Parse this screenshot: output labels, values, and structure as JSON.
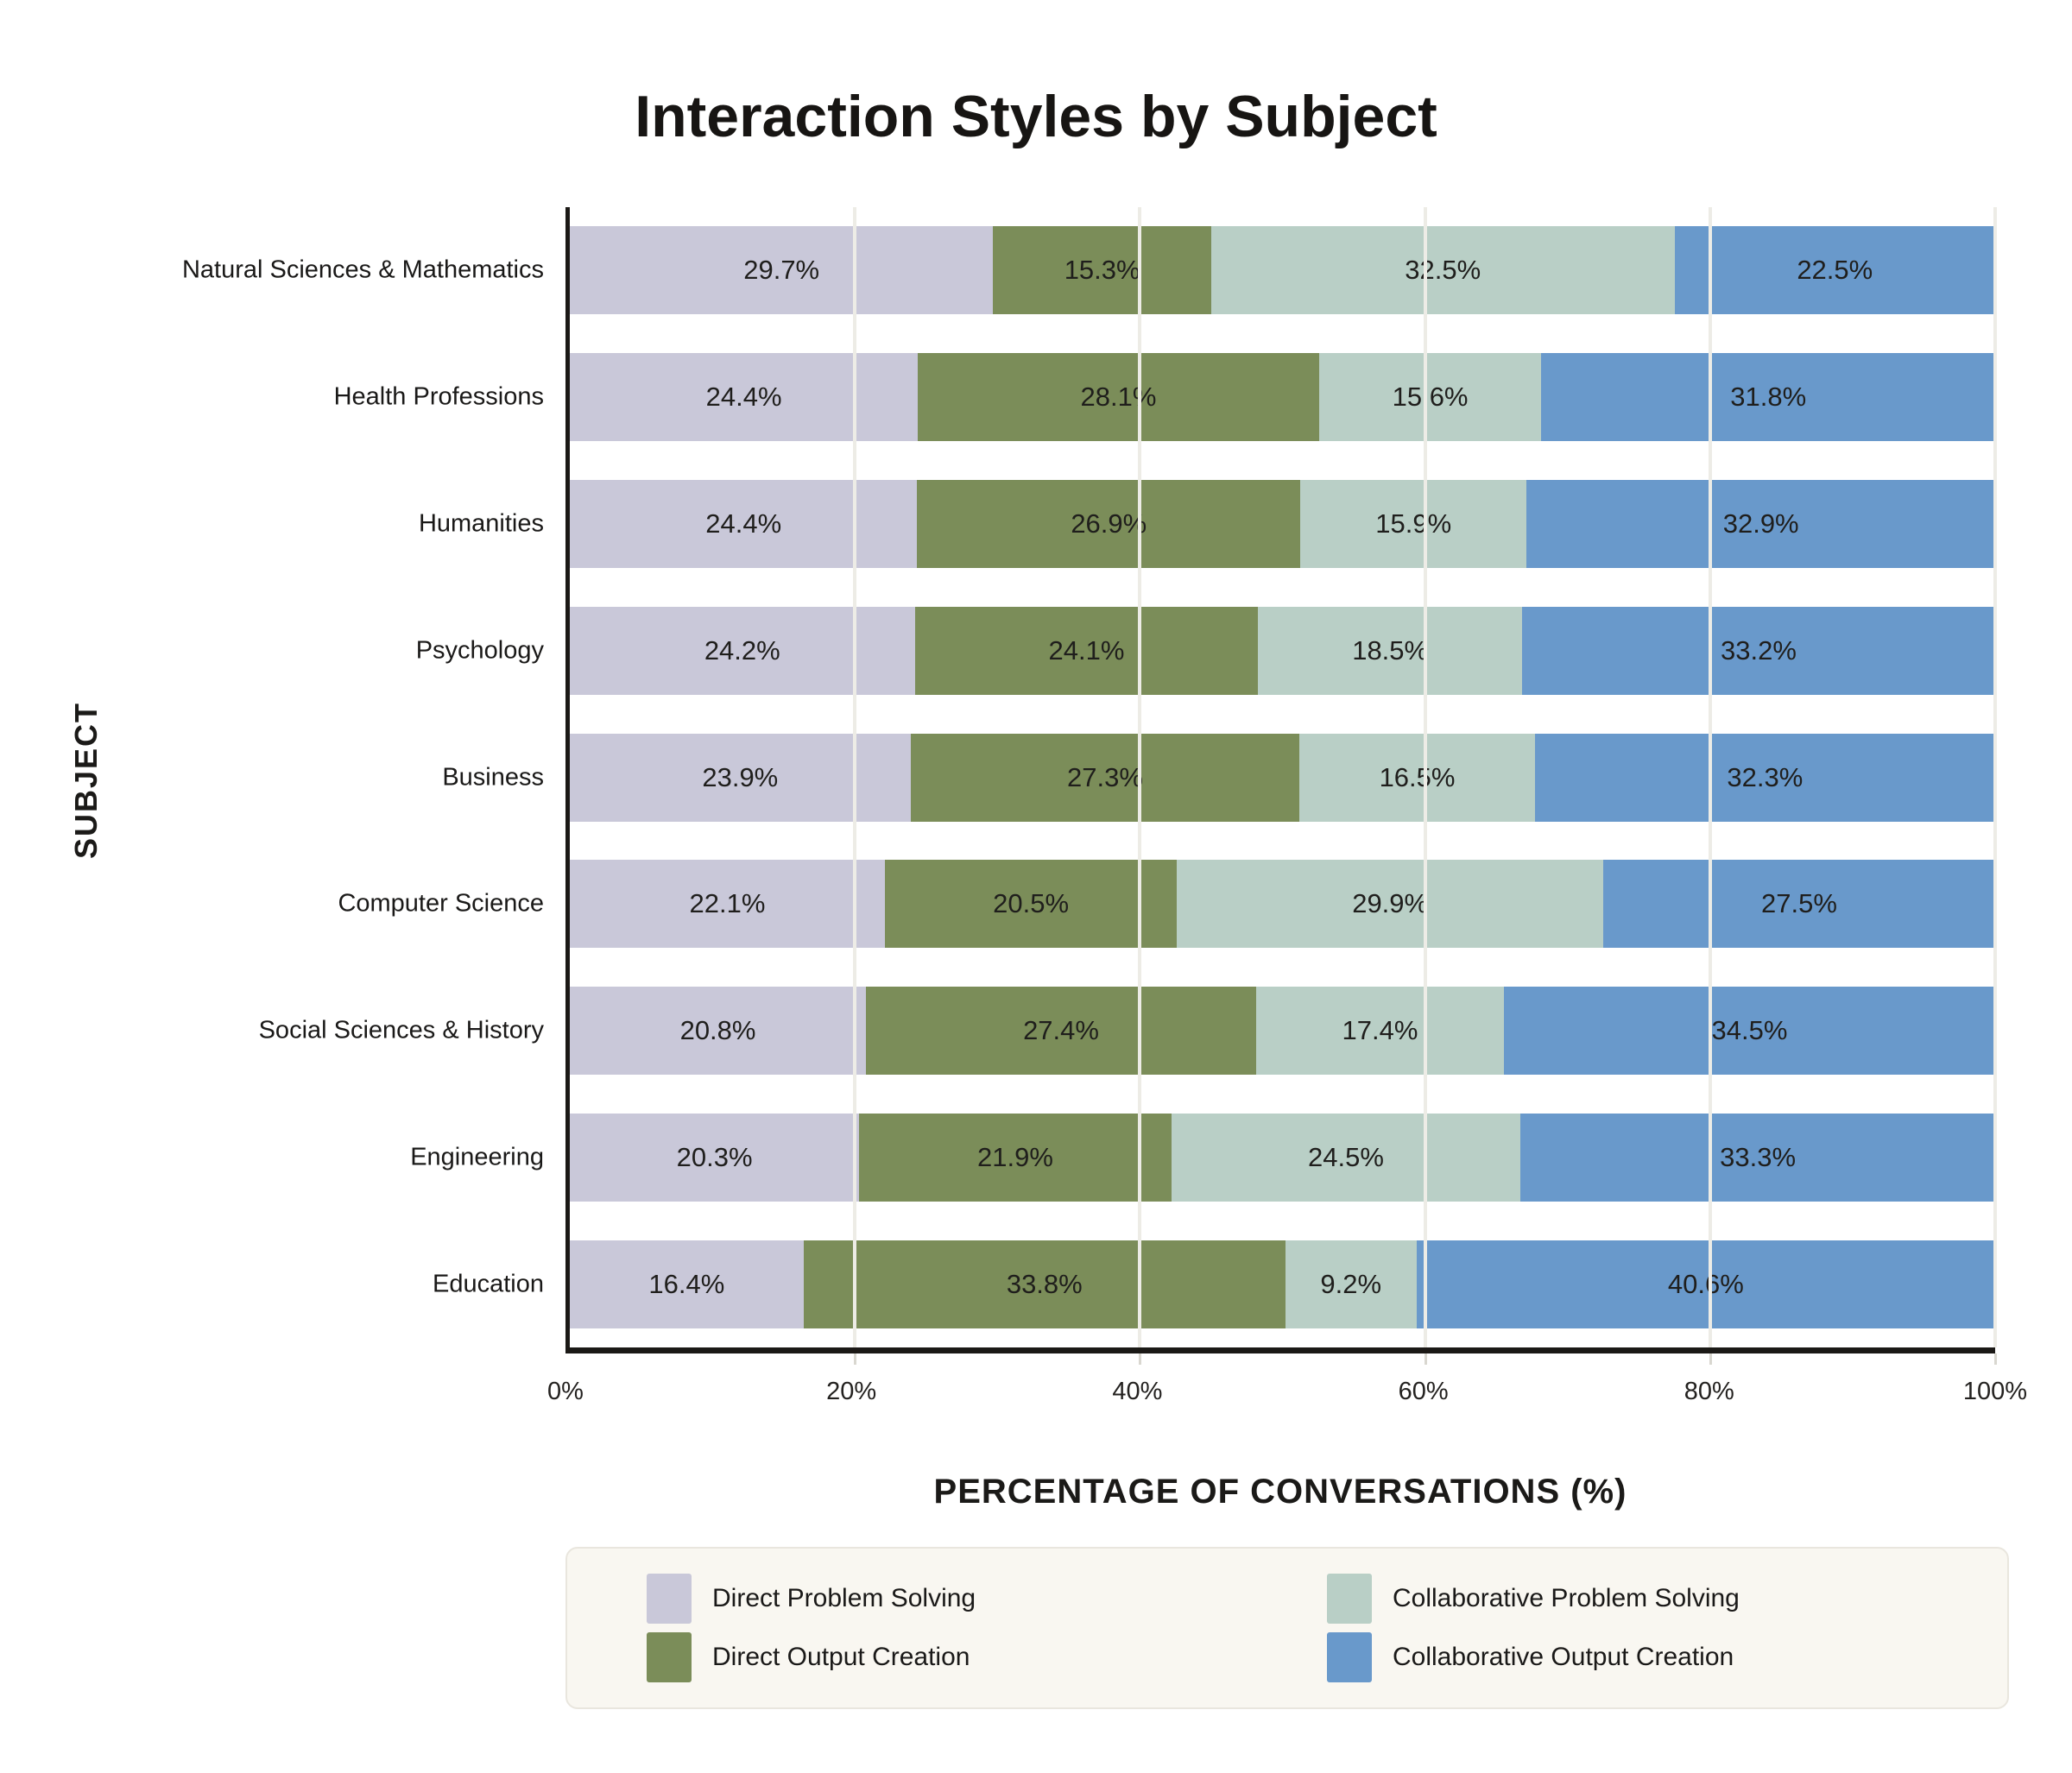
{
  "title": "Interaction Styles by Subject",
  "chart_data": {
    "type": "bar",
    "variant": "horizontal-stacked",
    "title": "Interaction Styles by Subject",
    "xlabel": "PERCENTAGE OF CONVERSATIONS (%)",
    "ylabel": "SUBJECT",
    "xlim": [
      0,
      100
    ],
    "x_ticks": [
      {
        "value": 0,
        "label": "0%"
      },
      {
        "value": 20,
        "label": "20%"
      },
      {
        "value": 40,
        "label": "40%"
      },
      {
        "value": 60,
        "label": "60%"
      },
      {
        "value": 80,
        "label": "80%"
      },
      {
        "value": 100,
        "label": "100%"
      }
    ],
    "grid": "vertical-gridlines-on",
    "legend_position": "bottom",
    "categories": [
      "Natural Sciences & Mathematics",
      "Health Professions",
      "Humanities",
      "Psychology",
      "Business",
      "Computer Science",
      "Social Sciences & History",
      "Engineering",
      "Education"
    ],
    "series": [
      {
        "name": "Direct Problem Solving",
        "color": "#c9c8d9",
        "values": [
          29.7,
          24.4,
          24.4,
          24.2,
          23.9,
          22.1,
          20.8,
          20.3,
          16.4
        ]
      },
      {
        "name": "Direct Output Creation",
        "color": "#7b8d59",
        "values": [
          15.3,
          28.1,
          26.9,
          24.1,
          27.3,
          20.5,
          27.4,
          21.9,
          33.8
        ]
      },
      {
        "name": "Collaborative Problem Solving",
        "color": "#b9cfc6",
        "values": [
          32.5,
          15.6,
          15.9,
          18.5,
          16.5,
          29.9,
          17.4,
          24.5,
          9.2
        ]
      },
      {
        "name": "Collaborative Output Creation",
        "color": "#6999cb",
        "values": [
          22.5,
          31.8,
          32.9,
          33.2,
          32.3,
          27.5,
          34.5,
          33.3,
          40.6
        ]
      }
    ],
    "value_label_suffix": "%"
  },
  "colors": {
    "page_background": "#ffffff",
    "axis_spine": "#1b1916",
    "gridline": "#edece6",
    "legend_background": "#f9f7f1",
    "legend_border": "#e9e6de",
    "text": "#1b1a18"
  }
}
